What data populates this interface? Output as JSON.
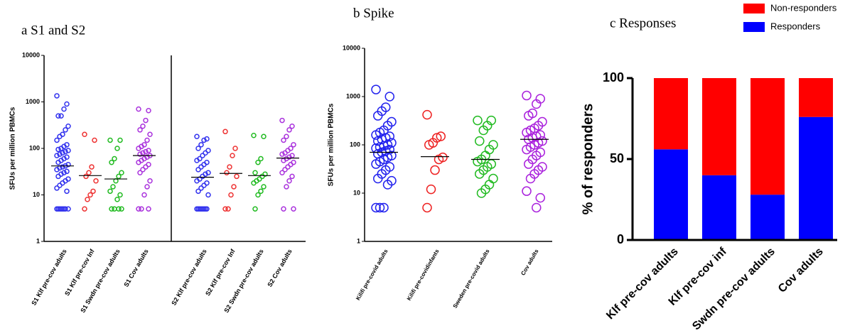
{
  "chart_data": [
    {
      "type": "dot",
      "title": "a S1 and S2",
      "y_label": "SFUs per million PBMCs",
      "log_y": true,
      "ylim": [
        1,
        10000
      ],
      "yticks": [
        1,
        10,
        100,
        1000,
        10000
      ],
      "groups": [
        {
          "name": "S1 Klf pre-cov adults",
          "color": "#3333ee",
          "median": 42,
          "values": [
            1350,
            900,
            700,
            500,
            500,
            300,
            250,
            200,
            180,
            150,
            120,
            110,
            100,
            95,
            90,
            85,
            80,
            75,
            70,
            65,
            60,
            55,
            50,
            45,
            42,
            40,
            38,
            35,
            32,
            30,
            28,
            25,
            22,
            20,
            18,
            16,
            14,
            12,
            5,
            5,
            5,
            5,
            5,
            5,
            5,
            5
          ]
        },
        {
          "name": "S1 Klf pre-cov Inf",
          "color": "#ee3333",
          "median": 26,
          "values": [
            200,
            150,
            40,
            30,
            25,
            20,
            12,
            10,
            8,
            5
          ]
        },
        {
          "name": "S1 Swdn pre-cov adults",
          "color": "#22bb22",
          "median": 22,
          "values": [
            150,
            150,
            100,
            60,
            50,
            30,
            25,
            20,
            15,
            12,
            10,
            8,
            5,
            5,
            5,
            5
          ]
        },
        {
          "name": "S1 Cov adults",
          "color": "#aa33dd",
          "median": 70,
          "values": [
            700,
            650,
            400,
            300,
            250,
            200,
            150,
            120,
            110,
            100,
            90,
            85,
            80,
            75,
            70,
            65,
            60,
            55,
            50,
            45,
            40,
            35,
            30,
            20,
            15,
            10,
            5,
            5,
            5
          ]
        },
        {
          "name": "S2 Klf pre-cov adults",
          "color": "#3333ee",
          "median": 24,
          "values": [
            180,
            160,
            150,
            120,
            100,
            90,
            80,
            70,
            60,
            55,
            50,
            45,
            40,
            35,
            30,
            28,
            25,
            22,
            20,
            18,
            16,
            14,
            12,
            10,
            5,
            5,
            5,
            5,
            5,
            5,
            5,
            5
          ]
        },
        {
          "name": "S2 Klf pre-cov Inf",
          "color": "#ee3333",
          "median": 29,
          "values": [
            230,
            100,
            70,
            40,
            30,
            25,
            15,
            10,
            5,
            5
          ]
        },
        {
          "name": "S2 Swdn pre-cov adults",
          "color": "#22bb22",
          "median": 26,
          "values": [
            190,
            180,
            60,
            50,
            30,
            28,
            25,
            22,
            20,
            18,
            15,
            12,
            10,
            5
          ]
        },
        {
          "name": "S2 Cov adults",
          "color": "#aa33dd",
          "median": 62,
          "values": [
            400,
            300,
            250,
            180,
            150,
            120,
            100,
            90,
            80,
            75,
            70,
            65,
            60,
            55,
            50,
            45,
            40,
            35,
            30,
            25,
            20,
            15,
            5,
            5
          ]
        }
      ]
    },
    {
      "type": "dot",
      "title": "b Spike",
      "y_label": "SFUs per million PBMCs",
      "log_y": true,
      "ylim": [
        1,
        10000
      ],
      "yticks": [
        1,
        10,
        100,
        1000,
        10000
      ],
      "groups": [
        {
          "name": "Kilifi pre-covid adults",
          "color": "#2222ee",
          "median": 70,
          "values": [
            1400,
            1000,
            600,
            500,
            400,
            300,
            250,
            200,
            180,
            160,
            150,
            140,
            130,
            120,
            110,
            100,
            95,
            90,
            85,
            80,
            75,
            70,
            65,
            60,
            55,
            50,
            45,
            40,
            35,
            30,
            25,
            20,
            18,
            15,
            5,
            5,
            5
          ]
        },
        {
          "name": "Kilifi pre-covidinfants",
          "color": "#ee2222",
          "median": 57,
          "values": [
            420,
            150,
            140,
            110,
            100,
            55,
            50,
            30,
            12,
            5
          ]
        },
        {
          "name": "Sweden pre-covid adults",
          "color": "#22bb22",
          "median": 50,
          "values": [
            320,
            320,
            250,
            200,
            120,
            100,
            80,
            60,
            50,
            45,
            40,
            35,
            30,
            25,
            20,
            15,
            12,
            10
          ]
        },
        {
          "name": "Cov adults",
          "color": "#aa22dd",
          "median": 130,
          "values": [
            1050,
            900,
            700,
            450,
            400,
            300,
            250,
            220,
            200,
            180,
            160,
            150,
            140,
            130,
            120,
            110,
            100,
            90,
            80,
            70,
            60,
            50,
            40,
            35,
            30,
            25,
            20,
            11,
            8,
            5
          ]
        }
      ]
    },
    {
      "type": "stacked_bar",
      "title": "c Responses",
      "y_label": "% of responders",
      "ylim": [
        0,
        100
      ],
      "yticks": [
        0,
        50,
        100
      ],
      "categories": [
        "Klf pre-cov adults",
        "Klf pre-cov inf",
        "Swdn pre-cov adults",
        "Cov adults"
      ],
      "series": [
        {
          "name": "Responders",
          "color": "#0000ff",
          "values": [
            56,
            40,
            28,
            76
          ]
        },
        {
          "name": "Non-responders",
          "color": "#ff0000",
          "values": [
            44,
            60,
            72,
            24
          ]
        }
      ]
    }
  ]
}
